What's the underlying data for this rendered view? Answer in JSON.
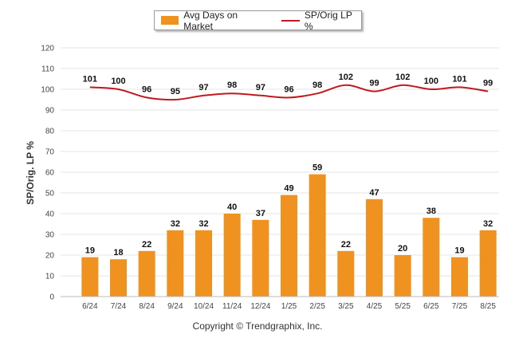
{
  "legend": {
    "bar_label": "Avg Days on Market",
    "line_label": "SP/Orig LP %"
  },
  "ylabel": "SP/Orig. LP %",
  "copyright": "Copyright © Trendgraphix, Inc.",
  "colors": {
    "bar": "#f0921f",
    "line": "#c0191f",
    "grid": "#e6e6e6"
  },
  "chart_data": {
    "type": "bar",
    "categories": [
      "6/24",
      "7/24",
      "8/24",
      "9/24",
      "10/24",
      "11/24",
      "12/24",
      "1/25",
      "2/25",
      "3/25",
      "4/25",
      "5/25",
      "6/25",
      "7/25",
      "8/25"
    ],
    "series": [
      {
        "name": "Avg Days on Market",
        "type": "bar",
        "values": [
          19,
          18,
          22,
          32,
          32,
          40,
          37,
          49,
          59,
          22,
          47,
          20,
          38,
          19,
          32
        ]
      },
      {
        "name": "SP/Orig LP %",
        "type": "line",
        "values": [
          101,
          100,
          96,
          95,
          97,
          98,
          97,
          96,
          98,
          102,
          99,
          102,
          100,
          101,
          99
        ]
      }
    ],
    "ylabel": "SP/Orig. LP %",
    "ylim": [
      0,
      120
    ],
    "yticks": [
      0,
      10,
      20,
      30,
      40,
      50,
      60,
      70,
      80,
      90,
      100,
      110,
      120
    ],
    "grid": true,
    "legend": "top-center"
  }
}
